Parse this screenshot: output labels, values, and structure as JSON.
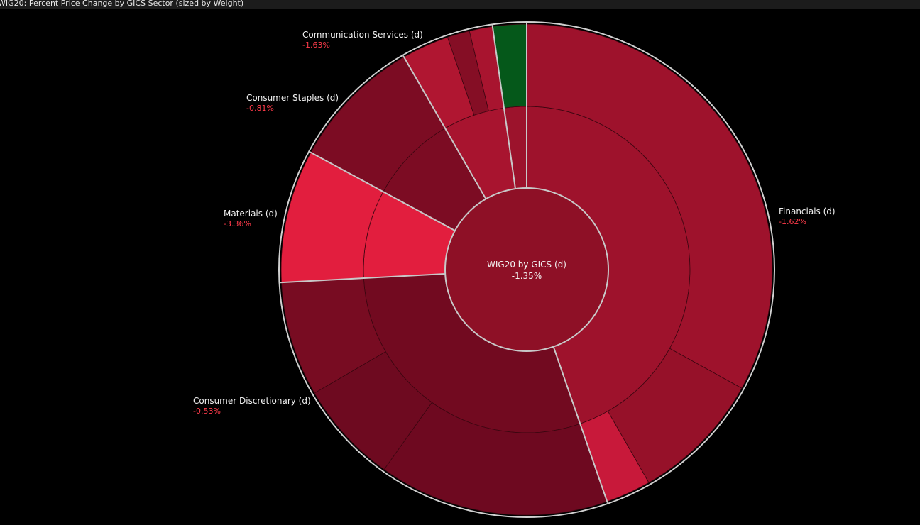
{
  "header": {
    "title": "WIG20: Percent Price Change by GICS Sector (sized by Weight)"
  },
  "chart_data": {
    "type": "sunburst",
    "center": {
      "label": "WIG20 by GICS (d)",
      "value": "-1.35%",
      "color": "#8e1026"
    },
    "colors": {
      "ring_stroke": "#c8c8c8",
      "outer_border": "#d0d0d0",
      "label_name": "#f0f0f0",
      "label_value": "#ff3b4a"
    },
    "sectors": [
      {
        "name": "Financials (d)",
        "value": "-1.62%",
        "start": 0,
        "end": 160.9,
        "color": "#9e122c",
        "children": [
          {
            "start": 0,
            "end": 118.9,
            "color": "#9e122c"
          },
          {
            "start": 118.9,
            "end": 150.2,
            "color": "#961129"
          },
          {
            "start": 150.2,
            "end": 160.9,
            "color": "#c8193a"
          }
        ]
      },
      {
        "name": "Consumer Discretionary (d)",
        "value": "-0.53%",
        "start": 160.9,
        "end": 267.0,
        "color": "#720a20",
        "children": [
          {
            "start": 160.9,
            "end": 215.5,
            "color": "#6e0920"
          },
          {
            "start": 215.5,
            "end": 239.8,
            "color": "#6e0a20"
          },
          {
            "start": 239.8,
            "end": 267.0,
            "color": "#780c22"
          }
        ]
      },
      {
        "name": "Materials (d)",
        "value": "-3.36%",
        "start": 267.0,
        "end": 298.5,
        "color": "#e21e3e",
        "children": [
          {
            "start": 267.0,
            "end": 298.5,
            "color": "#e21e3e"
          }
        ]
      },
      {
        "name": "Consumer Staples (d)",
        "value": "-0.81%",
        "start": 298.5,
        "end": 330.0,
        "color": "#7c0c23",
        "children": [
          {
            "start": 298.5,
            "end": 330.0,
            "color": "#7c0c23"
          }
        ]
      },
      {
        "name": "Communication Services (d)",
        "value": "-1.63%",
        "start": 330.0,
        "end": 352.0,
        "color": "#a8142f",
        "children": [
          {
            "start": 330.0,
            "end": 341.2,
            "color": "#b01631"
          },
          {
            "start": 341.2,
            "end": 346.5,
            "color": "#850e25"
          },
          {
            "start": 346.5,
            "end": 352.0,
            "color": "#a8142f"
          }
        ]
      },
      {
        "name": "",
        "value": "",
        "start": 352.0,
        "end": 360.0,
        "color": "#9c132c",
        "children": [
          {
            "start": 352.0,
            "end": 360.0,
            "color": "#05581a"
          }
        ]
      }
    ]
  }
}
